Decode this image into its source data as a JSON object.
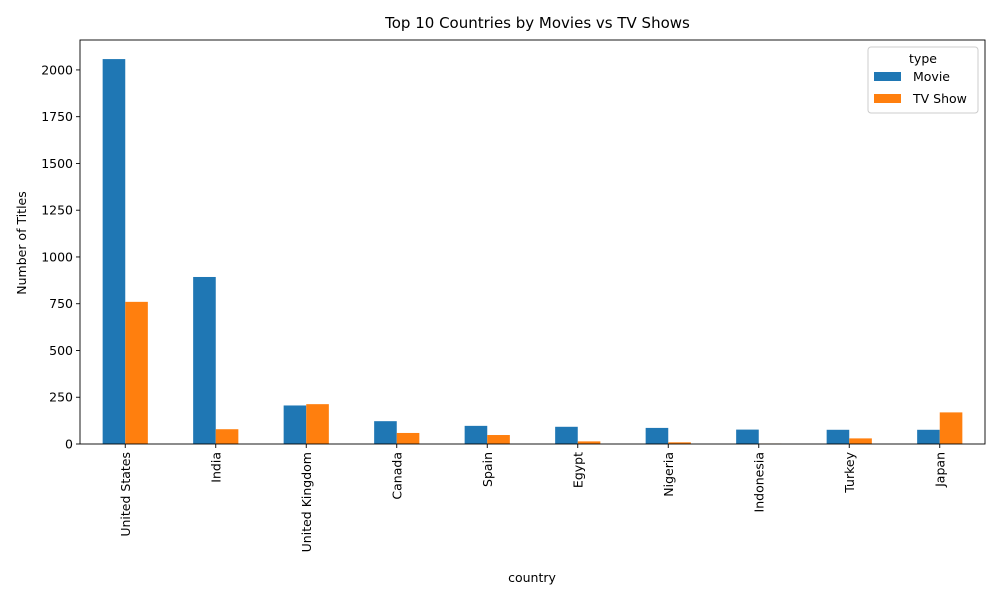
{
  "chart_data": {
    "type": "bar",
    "title": "Top 10 Countries by Movies vs TV Shows",
    "xlabel": "country",
    "ylabel": "Number of Titles",
    "categories": [
      "United States",
      "India",
      "United Kingdom",
      "Canada",
      "Spain",
      "Egypt",
      "Nigeria",
      "Indonesia",
      "Turkey",
      "Japan"
    ],
    "series": [
      {
        "name": "Movie",
        "color": "#1f77b4",
        "values": [
          2058,
          893,
          206,
          122,
          97,
          92,
          86,
          77,
          76,
          76
        ]
      },
      {
        "name": "TV Show",
        "color": "#ff7f0e",
        "values": [
          760,
          79,
          213,
          59,
          48,
          14,
          9,
          2,
          30,
          169
        ]
      }
    ],
    "ylim": [
      0,
      2160
    ],
    "yticks": [
      0,
      250,
      500,
      750,
      1000,
      1250,
      1500,
      1750,
      2000
    ],
    "legend": {
      "title": "type",
      "position": "top-right"
    },
    "grid": false
  }
}
